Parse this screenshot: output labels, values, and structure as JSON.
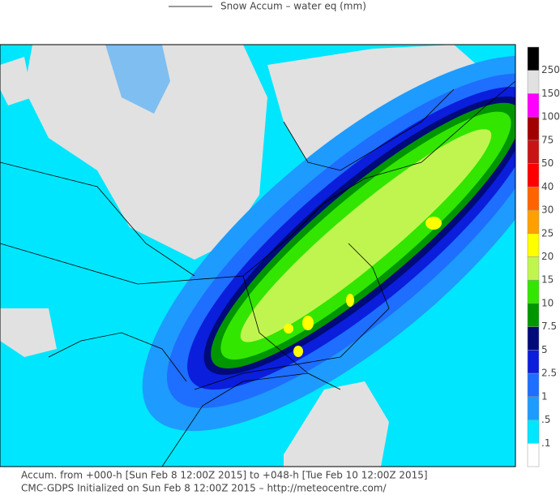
{
  "legend": {
    "title": "Snow Accum – water eq (mm)",
    "levels": [
      "250",
      "150",
      "100",
      "75",
      "50",
      "40",
      "30",
      "25",
      "20",
      "15",
      "10",
      "7.5",
      "5",
      "2.5",
      "1",
      ".5",
      ".1"
    ],
    "colors": [
      "#000000",
      "#e1e1e1",
      "#ff00ff",
      "#a00000",
      "#c81414",
      "#ff0000",
      "#ff6400",
      "#ffa000",
      "#ffff00",
      "#c0f550",
      "#32e600",
      "#009600",
      "#000a78",
      "#0a1edc",
      "#1e6eff",
      "#1e9bff",
      "#00e6ff",
      "#ffffff"
    ]
  },
  "footer": {
    "lines": [
      "Accum. from +000-h [Sun Feb 8 12:00Z 2015] to +048-h [Tue Feb 10 12:00Z 2015]",
      "CMC-GDPS Initialized on Sun Feb 8 12:00Z 2015 – http://meteocentre.com/"
    ]
  }
}
